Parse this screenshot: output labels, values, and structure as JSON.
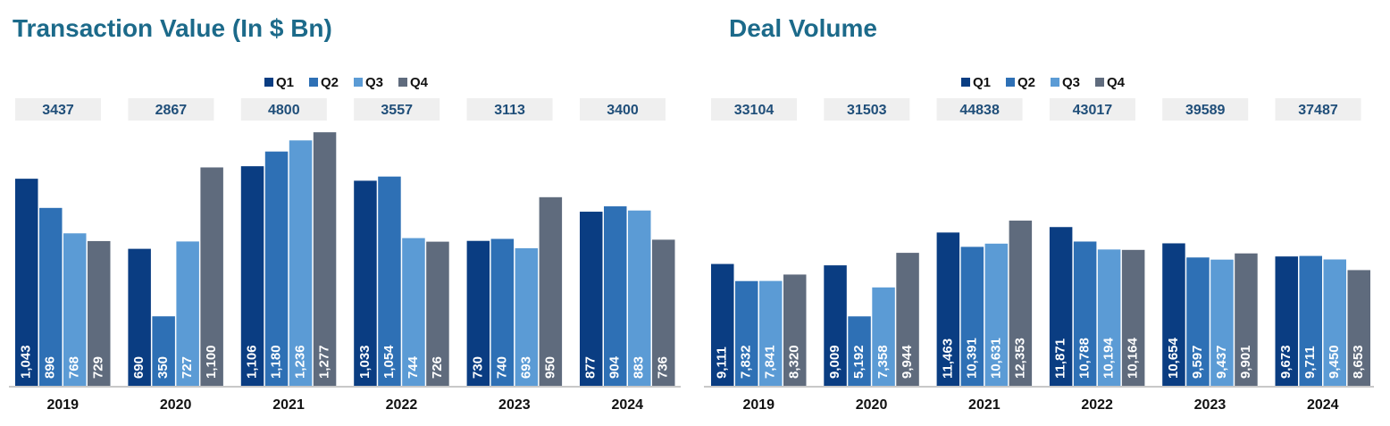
{
  "chart_data": [
    {
      "type": "bar",
      "title": "Transaction Value (In $ Bn)",
      "categories": [
        "2019",
        "2020",
        "2021",
        "2022",
        "2023",
        "2024"
      ],
      "totals": [
        "3437",
        "2867",
        "4800",
        "3557",
        "3113",
        "3400"
      ],
      "ylim": [
        0,
        1300
      ],
      "legend_position": "top-right",
      "series": [
        {
          "name": "Q1",
          "color": "#0a3d82",
          "values": [
            1043,
            690,
            1106,
            1033,
            730,
            877
          ],
          "labels": [
            "1,043",
            "690",
            "1,106",
            "1,033",
            "730",
            "877"
          ]
        },
        {
          "name": "Q2",
          "color": "#2e70b5",
          "values": [
            896,
            350,
            1180,
            1054,
            740,
            904
          ],
          "labels": [
            "896",
            "350",
            "1,180",
            "1,054",
            "740",
            "904"
          ]
        },
        {
          "name": "Q3",
          "color": "#5b9bd5",
          "values": [
            768,
            727,
            1236,
            744,
            693,
            883
          ],
          "labels": [
            "768",
            "727",
            "1,236",
            "744",
            "693",
            "883"
          ]
        },
        {
          "name": "Q4",
          "color": "#5f6b7d",
          "values": [
            729,
            1100,
            1277,
            726,
            950,
            736
          ],
          "labels": [
            "729",
            "1,100",
            "1,277",
            "726",
            "950",
            "736"
          ]
        }
      ]
    },
    {
      "type": "bar",
      "title": "Deal Volume",
      "categories": [
        "2019",
        "2020",
        "2021",
        "2022",
        "2023",
        "2024"
      ],
      "totals": [
        "33104",
        "31503",
        "44838",
        "43017",
        "39589",
        "37487"
      ],
      "ylim": [
        0,
        19300
      ],
      "legend_position": "top-right",
      "series": [
        {
          "name": "Q1",
          "color": "#0a3d82",
          "values": [
            9111,
            9009,
            11463,
            11871,
            10654,
            9673
          ],
          "labels": [
            "9,111",
            "9,009",
            "11,463",
            "11,871",
            "10,654",
            "9,673"
          ]
        },
        {
          "name": "Q2",
          "color": "#2e70b5",
          "values": [
            7832,
            5192,
            10391,
            10788,
            9597,
            9711
          ],
          "labels": [
            "7,832",
            "5,192",
            "10,391",
            "10,788",
            "9,597",
            "9,711"
          ]
        },
        {
          "name": "Q3",
          "color": "#5b9bd5",
          "values": [
            7841,
            7358,
            10631,
            10194,
            9437,
            9450
          ],
          "labels": [
            "7,841",
            "7,358",
            "10,631",
            "10,194",
            "9,437",
            "9,450"
          ]
        },
        {
          "name": "Q4",
          "color": "#5f6b7d",
          "values": [
            8320,
            9944,
            12353,
            10164,
            9901,
            8653
          ],
          "labels": [
            "8,320",
            "9,944",
            "12,353",
            "10,164",
            "9,901",
            "8,653"
          ]
        }
      ]
    }
  ]
}
